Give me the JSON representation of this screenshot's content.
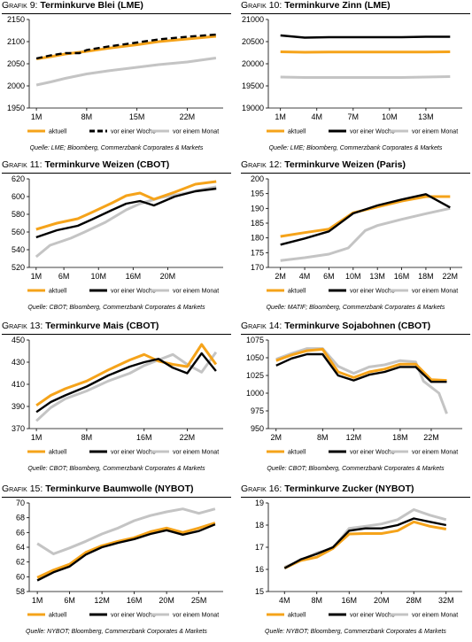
{
  "colors": {
    "aktuell": "#f5a31a",
    "woche": "#000000",
    "monat": "#c4c4c4"
  },
  "chart_data": [
    {
      "type": "line",
      "prefix": "Grafik",
      "number": "9:",
      "title": "Terminkurve Blei (LME)",
      "source": "Quelle: LME; Bloomberg, Commerzbank Corporates & Markets",
      "xlabels": [
        "1M",
        "8M",
        "15M",
        "22M"
      ],
      "xlabel_at": [
        1,
        8,
        15,
        22
      ],
      "xlim": [
        0,
        27
      ],
      "ylim": [
        1950,
        2150
      ],
      "yticks": [
        1950,
        2000,
        2050,
        2100,
        2150
      ],
      "series": [
        {
          "name": "aktuell",
          "style": "aktuell",
          "x": [
            1,
            3,
            5,
            8,
            11,
            15,
            18,
            22,
            26
          ],
          "y": [
            2061,
            2066,
            2072,
            2078,
            2085,
            2093,
            2100,
            2106,
            2112
          ]
        },
        {
          "name": "vor einer Woche",
          "style": "woche",
          "dash": true,
          "x": [
            1,
            3,
            5,
            7,
            8,
            11,
            15,
            18,
            22,
            26
          ],
          "y": [
            2062,
            2069,
            2074,
            2074,
            2081,
            2089,
            2098,
            2105,
            2111,
            2116
          ]
        },
        {
          "name": "vor einem Monat",
          "style": "monat",
          "x": [
            1,
            3,
            5,
            8,
            11,
            15,
            18,
            22,
            26
          ],
          "y": [
            2002,
            2009,
            2017,
            2027,
            2034,
            2042,
            2048,
            2054,
            2063
          ]
        }
      ]
    },
    {
      "type": "line",
      "prefix": "Grafik",
      "number": "10:",
      "title": "Terminkurve Zinn (LME)",
      "source": "Quelle: LME; Bloomberg, Commerzbank Corporates & Markets",
      "xlabels": [
        "1M",
        "4M",
        "7M",
        "10M",
        "13M"
      ],
      "xlabel_at": [
        1,
        4,
        7,
        10,
        13
      ],
      "xlim": [
        0,
        16
      ],
      "ylim": [
        19000,
        21000
      ],
      "yticks": [
        19000,
        19500,
        20000,
        20500,
        21000
      ],
      "series": [
        {
          "name": "aktuell",
          "style": "aktuell",
          "x": [
            1,
            3,
            5,
            7,
            9,
            11,
            13,
            15
          ],
          "y": [
            20270,
            20260,
            20265,
            20265,
            20265,
            20265,
            20265,
            20270
          ]
        },
        {
          "name": "vor einer Woche",
          "style": "woche",
          "x": [
            1,
            3,
            5,
            7,
            9,
            11,
            13,
            15
          ],
          "y": [
            20640,
            20590,
            20600,
            20600,
            20600,
            20600,
            20610,
            20610
          ]
        },
        {
          "name": "vor einem Monat",
          "style": "monat",
          "x": [
            1,
            3,
            5,
            7,
            9,
            11,
            13,
            15
          ],
          "y": [
            19700,
            19690,
            19690,
            19690,
            19690,
            19690,
            19700,
            19710
          ]
        }
      ]
    },
    {
      "type": "line",
      "prefix": "Grafik",
      "number": "11:",
      "title": "Terminkurve Weizen (CBOT)",
      "source": "Quelle: CBOT; Bloomberg, Commerzbank Corporates & Markets",
      "xlabels": [
        "1M",
        "6M",
        "10M",
        "16M",
        "20M"
      ],
      "xlabel_at": [
        1,
        5,
        10,
        15,
        20
      ],
      "xlim": [
        0,
        28
      ],
      "ylim": [
        520,
        620
      ],
      "yticks": [
        520,
        540,
        560,
        580,
        600,
        620
      ],
      "series": [
        {
          "name": "aktuell",
          "style": "aktuell",
          "x": [
            1,
            4,
            7,
            9,
            12,
            14,
            16,
            18,
            21,
            24,
            27
          ],
          "y": [
            563,
            570,
            575,
            582,
            593,
            601,
            604,
            597,
            605,
            614,
            617
          ]
        },
        {
          "name": "vor einer Woche",
          "style": "woche",
          "x": [
            1,
            4,
            7,
            9,
            12,
            14,
            16,
            18,
            21,
            24,
            27
          ],
          "y": [
            554,
            562,
            567,
            574,
            585,
            592,
            595,
            590,
            600,
            606,
            609
          ]
        },
        {
          "name": "vor einem Monat",
          "style": "monat",
          "x": [
            1,
            3,
            6,
            8,
            11,
            14,
            16,
            19,
            22,
            25,
            27
          ],
          "y": [
            532,
            545,
            553,
            560,
            571,
            585,
            592,
            599,
            603,
            608,
            611
          ]
        }
      ]
    },
    {
      "type": "line",
      "prefix": "Grafik",
      "number": "12:",
      "title": "Terminkurve Weizen (Paris)",
      "source": "Quelle: MATIF; Bloomberg, Commerzbank Corporates & Markets",
      "xlabels": [
        "2M",
        "4M",
        "6M",
        "10M",
        "13M",
        "16M",
        "18M",
        "22M"
      ],
      "xlabel_at": [
        2,
        4,
        6,
        8,
        10,
        12,
        14,
        16
      ],
      "xlim": [
        1,
        17
      ],
      "ylim": [
        170,
        200
      ],
      "yticks": [
        170,
        175,
        180,
        185,
        190,
        195,
        200
      ],
      "series": [
        {
          "name": "aktuell",
          "style": "aktuell",
          "x": [
            2,
            4,
            6,
            8,
            10,
            12,
            14,
            16
          ],
          "y": [
            180.5,
            181.8,
            183,
            188.5,
            190.5,
            192.5,
            194,
            194
          ]
        },
        {
          "name": "vor einer Woche",
          "style": "woche",
          "x": [
            2,
            4,
            6,
            8,
            10,
            12,
            14,
            16
          ],
          "y": [
            177.7,
            179.8,
            182.2,
            188.3,
            191,
            193,
            194.8,
            190.3
          ]
        },
        {
          "name": "vor einem Monat",
          "style": "monat",
          "x": [
            2,
            4,
            6,
            7.6,
            9,
            10,
            12,
            14,
            16
          ],
          "y": [
            172.3,
            173.3,
            174.5,
            176.6,
            182.5,
            184.2,
            186.3,
            188.2,
            190
          ]
        }
      ]
    },
    {
      "type": "line",
      "prefix": "Grafik",
      "number": "13:",
      "title": "Terminkurve Mais (CBOT)",
      "source": "Quelle: CBOT; Bloomberg, Commerzbank Corporates & Markets",
      "xlabels": [
        "1M",
        "8M",
        "16M",
        "22M"
      ],
      "xlabel_at": [
        1,
        8,
        16,
        22
      ],
      "xlim": [
        0,
        27
      ],
      "ylim": [
        370,
        450
      ],
      "yticks": [
        370,
        390,
        410,
        430,
        450
      ],
      "series": [
        {
          "name": "aktuell",
          "style": "aktuell",
          "x": [
            1,
            3,
            5,
            8,
            11,
            14,
            16,
            18,
            20,
            22,
            24,
            26
          ],
          "y": [
            391,
            400,
            406,
            413,
            423,
            432,
            437,
            431,
            428,
            426,
            446,
            428
          ]
        },
        {
          "name": "vor einer Woche",
          "style": "woche",
          "x": [
            1,
            3,
            5,
            8,
            11,
            14,
            16,
            18,
            20,
            22,
            24,
            26
          ],
          "y": [
            385,
            394,
            400,
            408,
            418,
            426,
            430,
            433,
            425,
            420,
            438,
            422
          ]
        },
        {
          "name": "vor einem Monat",
          "style": "monat",
          "x": [
            1,
            3,
            5,
            8,
            11,
            14,
            16,
            18,
            20,
            22,
            24,
            26
          ],
          "y": [
            377,
            389,
            397,
            404,
            413,
            420,
            427,
            432,
            437,
            428,
            421,
            439
          ]
        }
      ]
    },
    {
      "type": "line",
      "prefix": "Grafik",
      "number": "14:",
      "title": "Terminkurve Sojabohnen (CBOT)",
      "source": "Quelle: CBOT; Bloomberg, Commerzbank Corporates & Markets",
      "xlabels": [
        "2M",
        "8M",
        "12M",
        "18M",
        "22M"
      ],
      "xlabel_at": [
        2,
        8,
        12,
        18,
        22
      ],
      "xlim": [
        1,
        26
      ],
      "ylim": [
        950,
        1075
      ],
      "yticks": [
        950,
        975,
        1000,
        1025,
        1050,
        1075
      ],
      "series": [
        {
          "name": "aktuell",
          "style": "aktuell",
          "x": [
            2,
            4,
            6,
            8,
            10,
            12,
            14,
            16,
            18,
            20,
            22,
            24
          ],
          "y": [
            1046,
            1054,
            1060,
            1062,
            1030,
            1022,
            1030,
            1034,
            1041,
            1041,
            1019,
            1018
          ]
        },
        {
          "name": "vor einer Woche",
          "style": "woche",
          "x": [
            2,
            4,
            6,
            8,
            10,
            12,
            14,
            16,
            18,
            20,
            22,
            24
          ],
          "y": [
            1039,
            1049,
            1055,
            1055,
            1025,
            1018,
            1026,
            1030,
            1037,
            1037,
            1016,
            1016
          ]
        },
        {
          "name": "vor einem Monat",
          "style": "monat",
          "x": [
            2,
            4,
            6,
            8,
            10,
            12,
            14,
            16,
            18,
            20,
            21,
            23,
            24
          ],
          "y": [
            1048,
            1056,
            1063,
            1063,
            1038,
            1028,
            1037,
            1040,
            1046,
            1044,
            1017,
            1000,
            971
          ]
        }
      ]
    },
    {
      "type": "line",
      "prefix": "Grafik",
      "number": "15:",
      "title": "Terminkurve Baumwolle (NYBOT)",
      "source": "Quelle: NYBOT; Bloomberg, Commerzbank Corporates & Markets",
      "xlabels": [
        "1M",
        "6M",
        "12M",
        "16M",
        "20M",
        "25M"
      ],
      "xlabel_at": [
        1,
        5,
        9,
        13,
        17,
        21
      ],
      "xlim": [
        0,
        24
      ],
      "ylim": [
        58,
        70
      ],
      "yticks": [
        58,
        60,
        62,
        64,
        66,
        68,
        70
      ],
      "series": [
        {
          "name": "aktuell",
          "style": "aktuell",
          "x": [
            1,
            3,
            5,
            7,
            9,
            11,
            13,
            15,
            17,
            19,
            21,
            23
          ],
          "y": [
            59.9,
            60.9,
            61.7,
            63.3,
            64.2,
            64.8,
            65.3,
            66.1,
            66.6,
            66.0,
            66.6,
            67.3
          ]
        },
        {
          "name": "vor einer Woche",
          "style": "woche",
          "x": [
            1,
            3,
            5,
            7,
            9,
            11,
            13,
            15,
            17,
            19,
            21,
            23
          ],
          "y": [
            59.5,
            60.6,
            61.4,
            63.0,
            64.0,
            64.6,
            65.1,
            65.8,
            66.3,
            65.7,
            66.2,
            67.1
          ]
        },
        {
          "name": "vor einem Monat",
          "style": "monat",
          "x": [
            1,
            3,
            5,
            7,
            9,
            11,
            13,
            15,
            17,
            19,
            21,
            23
          ],
          "y": [
            64.5,
            63.1,
            63.9,
            64.8,
            65.8,
            66.6,
            67.6,
            68.3,
            68.8,
            69.2,
            68.6,
            69.2
          ]
        }
      ]
    },
    {
      "type": "line",
      "prefix": "Grafik",
      "number": "16:",
      "title": "Terminkurve Zucker (NYBOT)",
      "source": "Quelle: NYBOT; Bloomberg, Commerzbank Corporates & Markets",
      "xlabels": [
        "4M",
        "8M",
        "16M",
        "20M",
        "28M",
        "32M"
      ],
      "xlabel_at": [
        1,
        3,
        5,
        7,
        9,
        11
      ],
      "xlim": [
        0,
        12
      ],
      "ylim": [
        15,
        19
      ],
      "yticks": [
        15.0,
        16.0,
        17.0,
        18.0,
        19.0
      ],
      "series": [
        {
          "name": "aktuell",
          "style": "aktuell",
          "x": [
            1,
            2,
            3,
            4,
            5,
            6,
            7,
            8,
            9,
            10,
            11
          ],
          "y": [
            16.05,
            16.4,
            16.55,
            16.95,
            17.6,
            17.62,
            17.62,
            17.75,
            18.15,
            17.95,
            17.82
          ]
        },
        {
          "name": "vor einer Woche",
          "style": "woche",
          "x": [
            1,
            2,
            3,
            4,
            5,
            6,
            7,
            8,
            9,
            10,
            11
          ],
          "y": [
            16.05,
            16.45,
            16.7,
            17.0,
            17.75,
            17.85,
            17.85,
            18.0,
            18.3,
            18.15,
            18.0
          ]
        },
        {
          "name": "vor einem Monat",
          "style": "monat",
          "x": [
            1,
            2,
            3,
            4,
            5,
            6,
            7,
            8,
            9,
            10,
            11
          ],
          "y": [
            16.1,
            16.4,
            16.75,
            16.95,
            17.85,
            17.95,
            18.05,
            18.25,
            18.7,
            18.45,
            18.25
          ]
        }
      ]
    }
  ]
}
